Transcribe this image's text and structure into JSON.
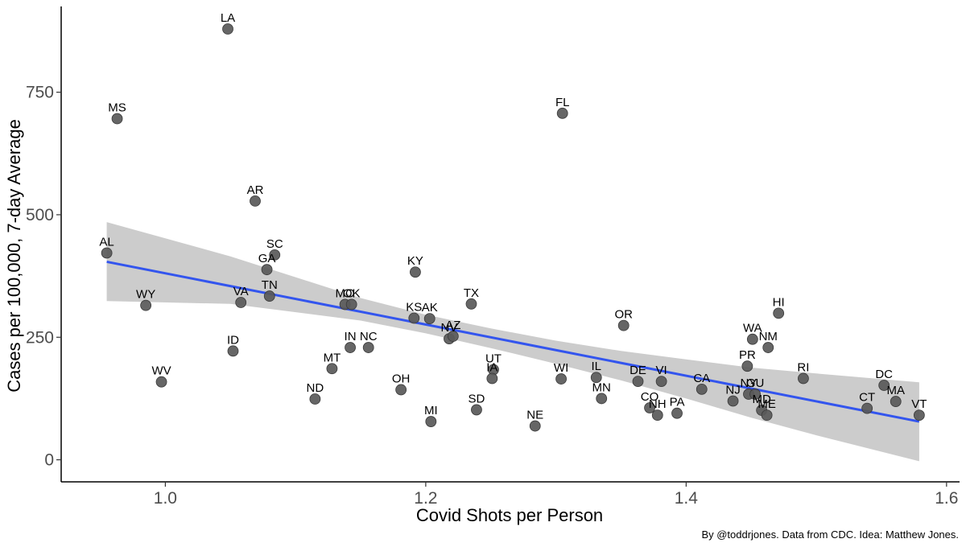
{
  "chart_data": {
    "type": "scatter",
    "xlabel": "Covid Shots per Person",
    "ylabel": "Cases per 100,000, 7-day Average",
    "caption": "By @toddrjones. Data from CDC. Idea: Matthew Jones.",
    "xlim": [
      0.92,
      1.61
    ],
    "ylim": [
      -45,
      925
    ],
    "x_ticks": [
      {
        "value": 1.0,
        "label": "1.0"
      },
      {
        "value": 1.2,
        "label": "1.2"
      },
      {
        "value": 1.4,
        "label": "1.4"
      },
      {
        "value": 1.6,
        "label": "1.6"
      }
    ],
    "y_ticks": [
      {
        "value": 0,
        "label": "0"
      },
      {
        "value": 250,
        "label": "250"
      },
      {
        "value": 500,
        "label": "500"
      },
      {
        "value": 750,
        "label": "750"
      }
    ],
    "colors": {
      "point": "#595959",
      "line": "#3355ee",
      "band": "#cccccc"
    },
    "trend": {
      "x": [
        0.955,
        1.579
      ],
      "y": [
        404,
        78
      ]
    },
    "confidence_band": [
      {
        "x": 0.955,
        "lo": 324,
        "hi": 485
      },
      {
        "x": 1.05,
        "lo": 318,
        "hi": 415
      },
      {
        "x": 1.15,
        "lo": 284,
        "hi": 330
      },
      {
        "x": 1.2,
        "lo": 258,
        "hi": 296
      },
      {
        "x": 1.25,
        "lo": 228,
        "hi": 268
      },
      {
        "x": 1.3,
        "lo": 196,
        "hi": 243
      },
      {
        "x": 1.35,
        "lo": 162,
        "hi": 222
      },
      {
        "x": 1.4,
        "lo": 125,
        "hi": 205
      },
      {
        "x": 1.45,
        "lo": 86,
        "hi": 188
      },
      {
        "x": 1.5,
        "lo": 50,
        "hi": 176
      },
      {
        "x": 1.579,
        "lo": -3,
        "hi": 158
      }
    ],
    "points": [
      {
        "label": "AL",
        "x": 0.955,
        "y": 422
      },
      {
        "label": "MS",
        "x": 0.963,
        "y": 696
      },
      {
        "label": "WY",
        "x": 0.985,
        "y": 315
      },
      {
        "label": "WV",
        "x": 0.997,
        "y": 159
      },
      {
        "label": "LA",
        "x": 1.048,
        "y": 879
      },
      {
        "label": "ID",
        "x": 1.052,
        "y": 222
      },
      {
        "label": "VA",
        "x": 1.058,
        "y": 321
      },
      {
        "label": "AR",
        "x": 1.069,
        "y": 528
      },
      {
        "label": "GA",
        "x": 1.078,
        "y": 388
      },
      {
        "label": "TN",
        "x": 1.08,
        "y": 334
      },
      {
        "label": "SC",
        "x": 1.084,
        "y": 418
      },
      {
        "label": "MT",
        "x": 1.128,
        "y": 186
      },
      {
        "label": "ND",
        "x": 1.115,
        "y": 124
      },
      {
        "label": "MO",
        "x": 1.138,
        "y": 317
      },
      {
        "label": "OK",
        "x": 1.143,
        "y": 317
      },
      {
        "label": "IN",
        "x": 1.142,
        "y": 229
      },
      {
        "label": "NC",
        "x": 1.156,
        "y": 229
      },
      {
        "label": "OH",
        "x": 1.181,
        "y": 143
      },
      {
        "label": "KY",
        "x": 1.192,
        "y": 383
      },
      {
        "label": "KS",
        "x": 1.191,
        "y": 289
      },
      {
        "label": "AK",
        "x": 1.203,
        "y": 288
      },
      {
        "label": "MI",
        "x": 1.204,
        "y": 78
      },
      {
        "label": "NV",
        "x": 1.218,
        "y": 247
      },
      {
        "label": "AZ",
        "x": 1.221,
        "y": 252
      },
      {
        "label": "TX",
        "x": 1.235,
        "y": 318
      },
      {
        "label": "SD",
        "x": 1.239,
        "y": 102
      },
      {
        "label": "UT",
        "x": 1.252,
        "y": 184
      },
      {
        "label": "IA",
        "x": 1.251,
        "y": 166
      },
      {
        "label": "NE",
        "x": 1.284,
        "y": 69
      },
      {
        "label": "FL",
        "x": 1.305,
        "y": 707
      },
      {
        "label": "WI",
        "x": 1.304,
        "y": 165
      },
      {
        "label": "IL",
        "x": 1.331,
        "y": 168
      },
      {
        "label": "MN",
        "x": 1.335,
        "y": 125
      },
      {
        "label": "OR",
        "x": 1.352,
        "y": 274
      },
      {
        "label": "DE",
        "x": 1.363,
        "y": 160
      },
      {
        "label": "CO",
        "x": 1.372,
        "y": 106
      },
      {
        "label": "NH",
        "x": 1.378,
        "y": 91
      },
      {
        "label": "VI",
        "x": 1.381,
        "y": 160
      },
      {
        "label": "PA",
        "x": 1.393,
        "y": 95
      },
      {
        "label": "CA",
        "x": 1.412,
        "y": 144
      },
      {
        "label": "NJ",
        "x": 1.436,
        "y": 120
      },
      {
        "label": "PR",
        "x": 1.447,
        "y": 191
      },
      {
        "label": "NY",
        "x": 1.448,
        "y": 134
      },
      {
        "label": "GU",
        "x": 1.453,
        "y": 134
      },
      {
        "label": "WA",
        "x": 1.451,
        "y": 246
      },
      {
        "label": "MD",
        "x": 1.458,
        "y": 101
      },
      {
        "label": "ME",
        "x": 1.462,
        "y": 91
      },
      {
        "label": "NM",
        "x": 1.463,
        "y": 229
      },
      {
        "label": "HI",
        "x": 1.471,
        "y": 299
      },
      {
        "label": "RI",
        "x": 1.49,
        "y": 166
      },
      {
        "label": "CT",
        "x": 1.539,
        "y": 105
      },
      {
        "label": "DC",
        "x": 1.552,
        "y": 152
      },
      {
        "label": "MA",
        "x": 1.561,
        "y": 119
      },
      {
        "label": "VT",
        "x": 1.579,
        "y": 91
      }
    ]
  }
}
